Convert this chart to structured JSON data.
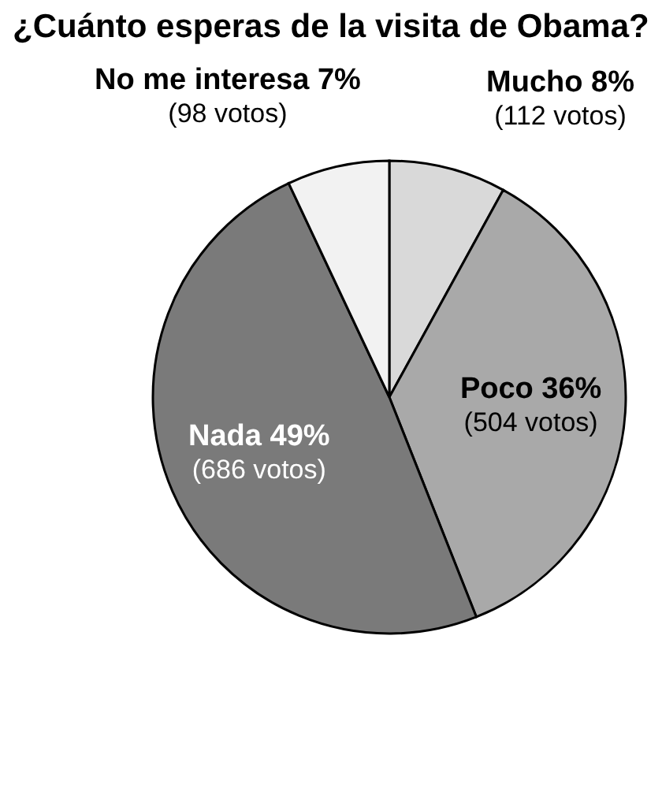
{
  "chart_data": {
    "type": "pie",
    "title": "¿Cuánto esperas de la visita de Obama?",
    "categories": [
      "Mucho",
      "Poco",
      "Nada",
      "No me interesa"
    ],
    "values": [
      8,
      36,
      49,
      7
    ],
    "value_labels": [
      "8%\n(112 votos)",
      "36%\n(504 votos)",
      "49%\n(686 votos)",
      "7%\n(98 votos)"
    ],
    "colors": [
      "#d9d9d9",
      "#a9a9a9",
      "#7a7a7a",
      "#f2f2f2"
    ],
    "legend": false
  }
}
